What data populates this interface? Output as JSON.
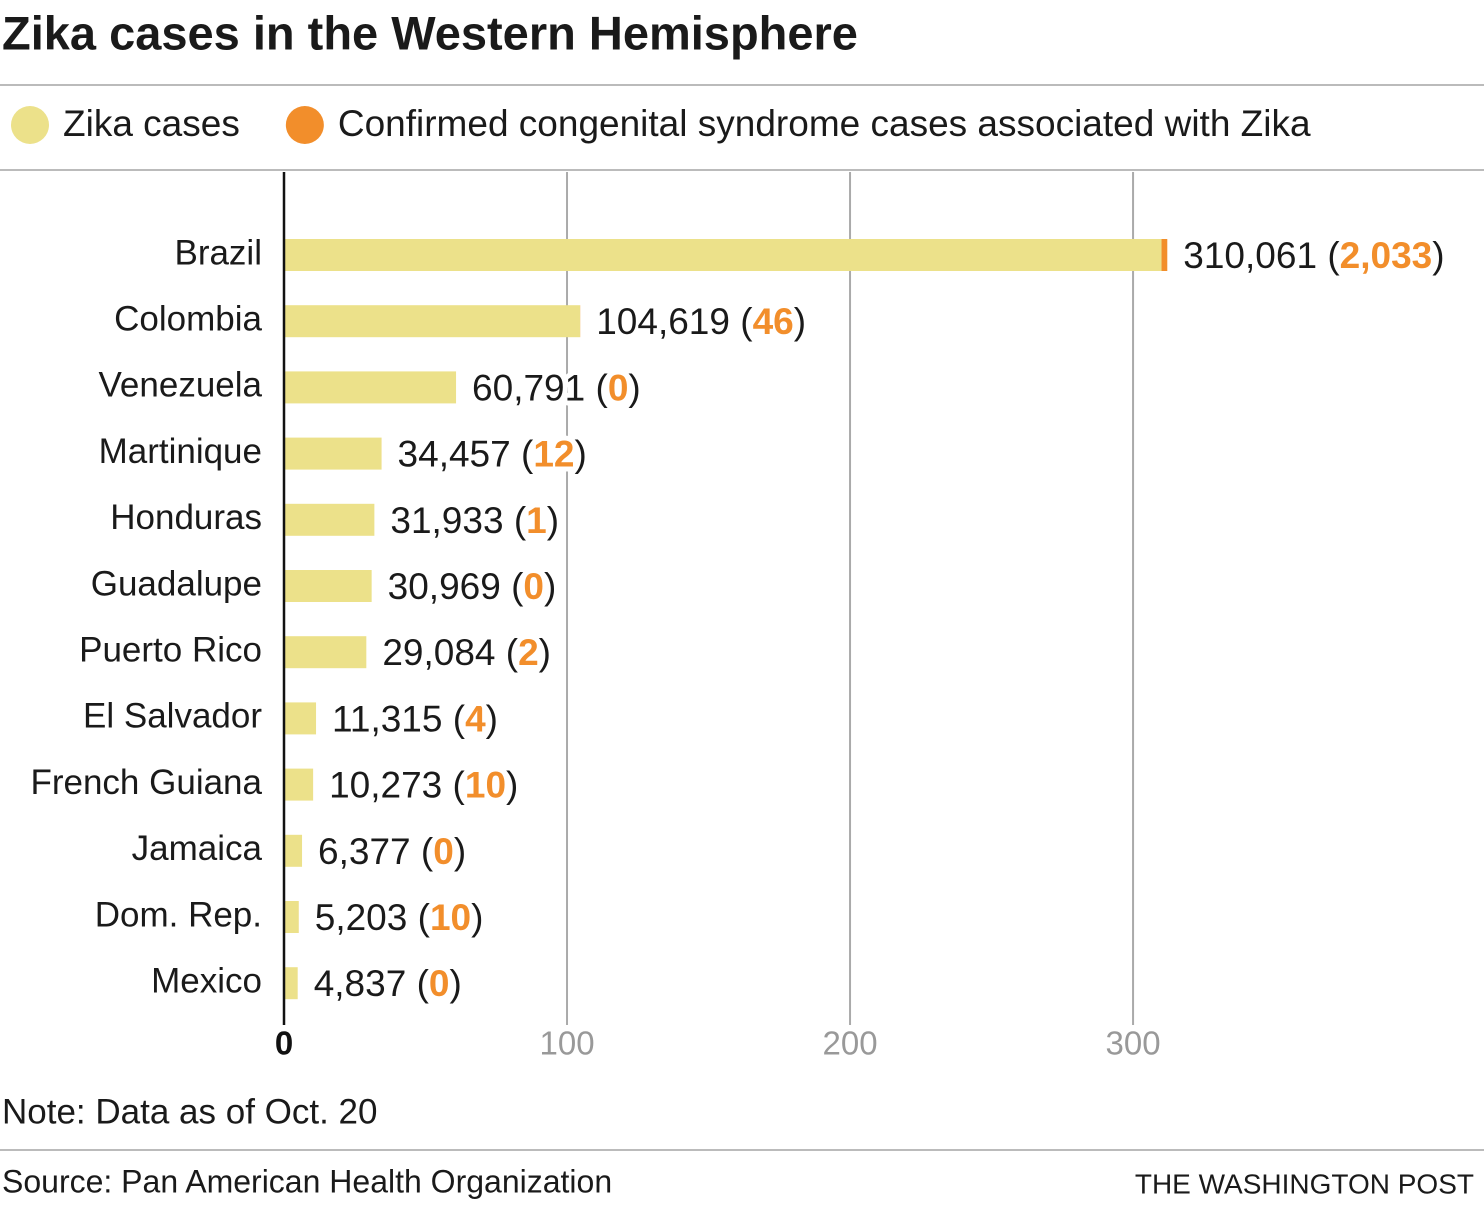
{
  "chart_data": {
    "type": "bar",
    "orientation": "horizontal",
    "stacked": true,
    "title": "Zika cases in the Western Hemisphere",
    "categories": [
      "Brazil",
      "Colombia",
      "Venezuela",
      "Martinique",
      "Honduras",
      "Guadalupe",
      "Puerto Rico",
      "El Salvador",
      "French Guiana",
      "Jamaica",
      "Dom. Rep.",
      "Mexico"
    ],
    "series": [
      {
        "name": "Zika cases",
        "color": "#ece18a",
        "values": [
          310.061,
          104.619,
          60.791,
          34.457,
          31.933,
          30.969,
          29.084,
          11.315,
          10.273,
          6.377,
          5.203,
          4.837
        ],
        "value_labels": [
          "310,061",
          "104,619",
          "60,791",
          "34,457",
          "31,933",
          "30,969",
          "29,084",
          "11,315",
          "10,273",
          "6,377",
          "5,203",
          "4,837"
        ]
      },
      {
        "name": "Confirmed congenital syndrome cases associated with Zika",
        "color": "#f28e2b",
        "values": [
          2.033,
          0.046,
          0,
          0.012,
          0.001,
          0,
          0.002,
          0.004,
          0.01,
          0,
          0.01,
          0
        ],
        "value_labels": [
          "(2,033)",
          "(46)",
          "(0)",
          "(12)",
          "(1)",
          "(0)",
          "(2)",
          "(4)",
          "(10)",
          "(0)",
          "(10)",
          "(0)"
        ]
      }
    ],
    "xlim": [
      0,
      424
    ],
    "xticks": [
      0,
      100,
      200,
      300
    ],
    "grid": true,
    "legend": "top",
    "note": "Note: Data as of Oct. 20",
    "source": "Source: Pan American Health Organization",
    "credit": "THE WASHINGTON POST"
  }
}
